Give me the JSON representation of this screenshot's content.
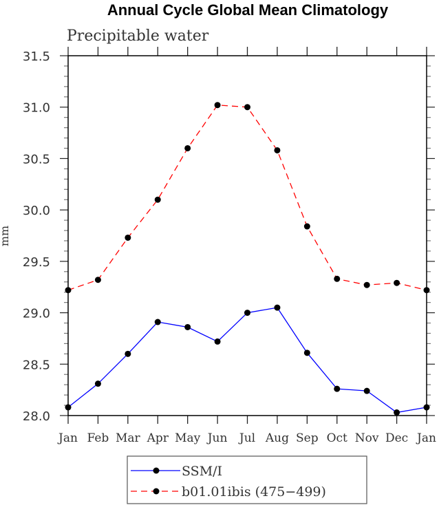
{
  "chart_data": {
    "type": "line",
    "title": "Annual Cycle Global Mean Climatology",
    "subtitle": "Precipitable water",
    "xlabel": "",
    "ylabel": "mm",
    "categories": [
      "Jan",
      "Feb",
      "Mar",
      "Apr",
      "May",
      "Jun",
      "Jul",
      "Aug",
      "Sep",
      "Oct",
      "Nov",
      "Dec",
      "Jan"
    ],
    "ylim": [
      28.0,
      31.5
    ],
    "yticks": [
      "28.0",
      "28.5",
      "29.0",
      "29.5",
      "30.0",
      "30.5",
      "31.0",
      "31.5"
    ],
    "ytick_values": [
      28.0,
      28.5,
      29.0,
      29.5,
      30.0,
      30.5,
      31.0,
      31.5
    ],
    "grid": false,
    "legend_position": "bottom-center",
    "series": [
      {
        "name": "SSM/I",
        "color": "#0000ff",
        "line_style": "solid",
        "marker": "circle",
        "values": [
          28.08,
          28.31,
          28.6,
          28.91,
          28.86,
          28.72,
          29.0,
          29.05,
          28.61,
          28.26,
          28.24,
          28.03,
          28.08
        ]
      },
      {
        "name": "b01.01ibis (475−499)",
        "color": "#ff0000",
        "line_style": "dashed",
        "marker": "circle",
        "values": [
          29.22,
          29.32,
          29.73,
          30.1,
          30.6,
          31.02,
          31.0,
          30.58,
          29.84,
          29.33,
          29.27,
          29.29,
          29.22
        ]
      }
    ]
  }
}
